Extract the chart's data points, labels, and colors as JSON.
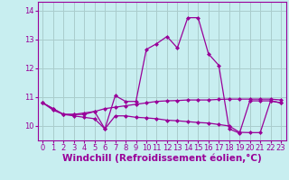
{
  "x": [
    0,
    1,
    2,
    3,
    4,
    5,
    6,
    7,
    8,
    9,
    10,
    11,
    12,
    13,
    14,
    15,
    16,
    17,
    18,
    19,
    20,
    21,
    22,
    23
  ],
  "line1": [
    10.8,
    10.6,
    10.4,
    10.4,
    10.4,
    10.5,
    10.6,
    10.65,
    10.7,
    10.75,
    10.8,
    10.85,
    10.87,
    10.88,
    10.9,
    10.9,
    10.9,
    10.92,
    10.93,
    10.93,
    10.93,
    10.93,
    10.93,
    10.9
  ],
  "line2": [
    10.8,
    10.6,
    10.4,
    10.4,
    10.45,
    10.5,
    9.9,
    11.05,
    10.85,
    10.85,
    12.65,
    12.85,
    13.1,
    12.7,
    13.75,
    13.75,
    12.5,
    12.1,
    9.9,
    9.75,
    10.87,
    10.87,
    10.87,
    10.8
  ],
  "line3": [
    10.8,
    10.55,
    10.4,
    10.35,
    10.3,
    10.25,
    9.9,
    10.35,
    10.35,
    10.3,
    10.28,
    10.25,
    10.2,
    10.18,
    10.15,
    10.12,
    10.1,
    10.05,
    10.0,
    9.78,
    9.77,
    9.77,
    10.87,
    10.8
  ],
  "line_color": "#990099",
  "bg_color": "#c8eef0",
  "grid_color": "#aacccc",
  "xlabel": "Windchill (Refroidissement éolien,°C)",
  "ylim": [
    9.5,
    14.3
  ],
  "xlim": [
    -0.5,
    23.5
  ],
  "yticks": [
    10,
    11,
    12,
    13,
    14
  ],
  "xticks": [
    0,
    1,
    2,
    3,
    4,
    5,
    6,
    7,
    8,
    9,
    10,
    11,
    12,
    13,
    14,
    15,
    16,
    17,
    18,
    19,
    20,
    21,
    22,
    23
  ],
  "tick_fontsize": 6,
  "xlabel_fontsize": 7.5
}
